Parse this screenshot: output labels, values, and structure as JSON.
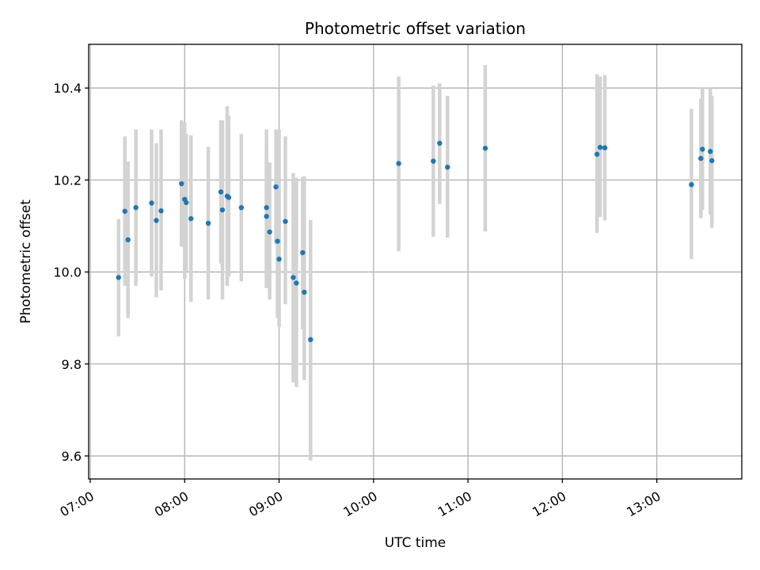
{
  "chart_data": {
    "type": "scatter",
    "title": "Photometric offset variation",
    "xlabel": "UTC time",
    "ylabel": "Photometric offset",
    "x_ticks": [
      "07:00",
      "08:00",
      "09:00",
      "10:00",
      "11:00",
      "12:00",
      "13:00"
    ],
    "y_ticks": [
      "9.6",
      "9.8",
      "10.0",
      "10.2",
      "10.4"
    ],
    "xlim": [
      "06:59",
      "13:54"
    ],
    "ylim": [
      9.55,
      10.495
    ],
    "grid": true,
    "colors": {
      "point": "#1f77b4",
      "error_bar": "#d3d3d3"
    },
    "points": [
      {
        "x": "07:18",
        "y": 9.988,
        "lo": 9.86,
        "hi": 10.115
      },
      {
        "x": "07:22",
        "y": 10.132,
        "lo": 9.97,
        "hi": 10.295
      },
      {
        "x": "07:24",
        "y": 10.07,
        "lo": 9.9,
        "hi": 10.24
      },
      {
        "x": "07:29",
        "y": 10.14,
        "lo": 9.97,
        "hi": 10.31
      },
      {
        "x": "07:39",
        "y": 10.15,
        "lo": 9.99,
        "hi": 10.31
      },
      {
        "x": "07:42",
        "y": 10.112,
        "lo": 9.945,
        "hi": 10.28
      },
      {
        "x": "07:45",
        "y": 10.133,
        "lo": 9.96,
        "hi": 10.31
      },
      {
        "x": "07:58",
        "y": 10.192,
        "lo": 10.055,
        "hi": 10.33
      },
      {
        "x": "08:00",
        "y": 10.158,
        "lo": 9.985,
        "hi": 10.325
      },
      {
        "x": "08:01",
        "y": 10.151,
        "lo": 10.0,
        "hi": 10.3
      },
      {
        "x": "08:04",
        "y": 10.116,
        "lo": 9.935,
        "hi": 10.297
      },
      {
        "x": "08:15",
        "y": 10.106,
        "lo": 9.94,
        "hi": 10.272
      },
      {
        "x": "08:23",
        "y": 10.174,
        "lo": 10.018,
        "hi": 10.33
      },
      {
        "x": "08:24",
        "y": 10.135,
        "lo": 9.94,
        "hi": 10.33
      },
      {
        "x": "08:27",
        "y": 10.165,
        "lo": 9.97,
        "hi": 10.36
      },
      {
        "x": "08:28",
        "y": 10.162,
        "lo": 9.99,
        "hi": 10.34
      },
      {
        "x": "08:36",
        "y": 10.14,
        "lo": 9.98,
        "hi": 10.3
      },
      {
        "x": "08:52",
        "y": 10.121,
        "lo": 9.97,
        "hi": 10.275
      },
      {
        "x": "08:52",
        "y": 10.14,
        "lo": 9.965,
        "hi": 10.31
      },
      {
        "x": "08:54",
        "y": 10.087,
        "lo": 9.94,
        "hi": 10.238
      },
      {
        "x": "08:58",
        "y": 10.185,
        "lo": 10.06,
        "hi": 10.31
      },
      {
        "x": "08:59",
        "y": 10.067,
        "lo": 9.9,
        "hi": 10.235
      },
      {
        "x": "09:00",
        "y": 10.028,
        "lo": 9.88,
        "hi": 10.31
      },
      {
        "x": "09:04",
        "y": 10.11,
        "lo": 9.93,
        "hi": 10.295
      },
      {
        "x": "09:09",
        "y": 9.988,
        "lo": 9.76,
        "hi": 10.215
      },
      {
        "x": "09:11",
        "y": 9.976,
        "lo": 9.75,
        "hi": 10.205
      },
      {
        "x": "09:15",
        "y": 10.042,
        "lo": 9.875,
        "hi": 10.207
      },
      {
        "x": "09:16",
        "y": 9.956,
        "lo": 9.765,
        "hi": 10.208
      },
      {
        "x": "09:20",
        "y": 9.853,
        "lo": 9.59,
        "hi": 10.113
      },
      {
        "x": "10:16",
        "y": 10.236,
        "lo": 10.045,
        "hi": 10.425
      },
      {
        "x": "10:38",
        "y": 10.241,
        "lo": 10.077,
        "hi": 10.405
      },
      {
        "x": "10:42",
        "y": 10.28,
        "lo": 10.148,
        "hi": 10.41
      },
      {
        "x": "10:47",
        "y": 10.228,
        "lo": 10.075,
        "hi": 10.383
      },
      {
        "x": "11:11",
        "y": 10.269,
        "lo": 10.088,
        "hi": 10.45
      },
      {
        "x": "12:22",
        "y": 10.256,
        "lo": 10.085,
        "hi": 10.43
      },
      {
        "x": "12:24",
        "y": 10.271,
        "lo": 10.12,
        "hi": 10.425
      },
      {
        "x": "12:27",
        "y": 10.27,
        "lo": 10.112,
        "hi": 10.428
      },
      {
        "x": "13:22",
        "y": 10.19,
        "lo": 10.028,
        "hi": 10.355
      },
      {
        "x": "13:28",
        "y": 10.247,
        "lo": 10.117,
        "hi": 10.377
      },
      {
        "x": "13:29",
        "y": 10.267,
        "lo": 10.135,
        "hi": 10.4
      },
      {
        "x": "13:34",
        "y": 10.262,
        "lo": 10.125,
        "hi": 10.4
      },
      {
        "x": "13:35",
        "y": 10.242,
        "lo": 10.096,
        "hi": 10.383
      }
    ]
  }
}
